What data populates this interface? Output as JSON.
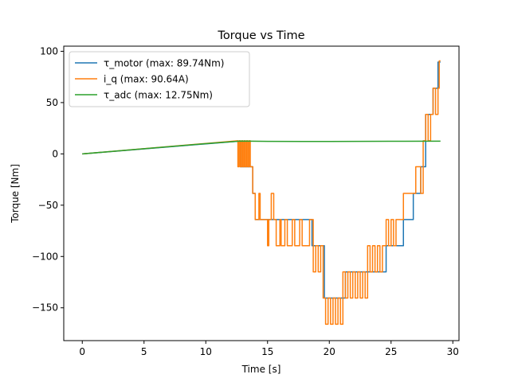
{
  "chart_data": {
    "type": "line",
    "title": "Torque vs Time",
    "xlabel": "Time [s]",
    "ylabel": "Torque [Nm]",
    "xlim": [
      -1.5,
      30.5
    ],
    "ylim": [
      -182,
      105
    ],
    "xticks": [
      0,
      5,
      10,
      15,
      20,
      25,
      30
    ],
    "yticks": [
      -150,
      -100,
      -50,
      0,
      50,
      100
    ],
    "grid": false,
    "legend_position": "top-left",
    "series": [
      {
        "name": "τ_motor (max: 89.74Nm)",
        "color": "#1f77b4",
        "x": [
          0,
          12.8,
          12.8,
          13.8,
          13.8,
          14.0,
          14.0,
          14.4,
          14.4,
          15.0,
          15.0,
          15.2,
          15.2,
          16.0,
          16.0,
          16.8,
          16.8,
          18.6,
          18.6,
          19.6,
          19.6,
          21.3,
          21.3,
          23.0,
          23.0,
          24.6,
          24.6,
          26.0,
          26.0,
          26.8,
          26.8,
          27.4,
          27.4,
          27.8,
          27.8,
          28.4,
          28.4,
          28.8,
          28.8,
          29.0
        ],
        "y": [
          0,
          12.5,
          -12.5,
          -12.5,
          -38.5,
          -38.5,
          -64,
          -64,
          -64,
          -64,
          -64,
          -64,
          -64,
          -64,
          -64,
          -64,
          -64,
          -64,
          -89.5,
          -89.5,
          -140.5,
          -140.5,
          -115,
          -115,
          -115,
          -115,
          -89.5,
          -89.5,
          -64,
          -64,
          -38.5,
          -38.5,
          -12.5,
          -12.5,
          38.5,
          38.5,
          64,
          64,
          89.5,
          89.5
        ]
      },
      {
        "name": "i_q (max: 90.64A)",
        "color": "#ff7f0e",
        "x": [
          0,
          12.6,
          12.6,
          12.7,
          12.7,
          12.8,
          12.8,
          12.9,
          12.9,
          13.0,
          13.0,
          13.1,
          13.1,
          13.2,
          13.2,
          13.3,
          13.3,
          13.4,
          13.4,
          13.5,
          13.5,
          13.6,
          13.6,
          13.7,
          13.7,
          13.8,
          13.8,
          13.9,
          13.9,
          14.0,
          14.0,
          14.3,
          14.3,
          14.4,
          14.4,
          14.5,
          14.5,
          14.6,
          14.6,
          15.0,
          15.0,
          15.1,
          15.1,
          15.3,
          15.3,
          15.5,
          15.5,
          15.7,
          15.7,
          16.0,
          16.0,
          16.1,
          16.1,
          16.4,
          16.4,
          16.6,
          16.6,
          17.0,
          17.0,
          17.2,
          17.2,
          17.6,
          17.6,
          17.8,
          17.8,
          18.4,
          18.4,
          18.7,
          18.7,
          18.9,
          18.9,
          19.1,
          19.1,
          19.3,
          19.3,
          19.5,
          19.5,
          19.7,
          19.7,
          19.9,
          19.9,
          20.1,
          20.1,
          20.3,
          20.3,
          20.5,
          20.5,
          20.7,
          20.7,
          20.9,
          20.9,
          21.1,
          21.1,
          21.3,
          21.3,
          21.5,
          21.5,
          21.7,
          21.7,
          21.9,
          21.9,
          22.1,
          22.1,
          22.3,
          22.3,
          22.5,
          22.5,
          22.7,
          22.7,
          22.9,
          22.9,
          23.1,
          23.1,
          23.3,
          23.3,
          23.5,
          23.5,
          23.7,
          23.7,
          23.9,
          23.9,
          24.1,
          24.1,
          24.3,
          24.3,
          24.6,
          24.6,
          24.8,
          24.8,
          25.0,
          25.0,
          25.2,
          25.2,
          25.4,
          25.4,
          25.6,
          25.6,
          26.0,
          26.0,
          26.8,
          26.8,
          27.0,
          27.0,
          27.4,
          27.4,
          27.6,
          27.6,
          27.8,
          27.8,
          28.0,
          28.0,
          28.2,
          28.2,
          28.4,
          28.4,
          28.6,
          28.6,
          28.8,
          28.8,
          28.9,
          28.9,
          29.0
        ],
        "y": [
          0,
          12.8,
          -12.5,
          -12.5,
          12.8,
          12.8,
          -12.5,
          -12.5,
          12.8,
          12.8,
          -12.5,
          -12.5,
          12.8,
          12.8,
          -12.5,
          -12.5,
          12.8,
          12.8,
          -12.5,
          -12.5,
          12.8,
          12.8,
          -12.5,
          -12.5,
          -12.5,
          -12.5,
          -38.5,
          -38.5,
          -38.5,
          -38.5,
          -64,
          -64,
          -38.5,
          -38.5,
          -64,
          -64,
          -64,
          -64,
          -64,
          -64,
          -89.5,
          -89.5,
          -64,
          -64,
          -38.5,
          -38.5,
          -64,
          -64,
          -89.5,
          -89.5,
          -64,
          -64,
          -89.5,
          -89.5,
          -64,
          -64,
          -89.5,
          -89.5,
          -64,
          -64,
          -89.5,
          -89.5,
          -64,
          -64,
          -89.5,
          -89.5,
          -64,
          -64,
          -115,
          -115,
          -89.5,
          -89.5,
          -115,
          -115,
          -89.5,
          -89.5,
          -140.5,
          -140.5,
          -166,
          -166,
          -140.5,
          -140.5,
          -166,
          -166,
          -140.5,
          -140.5,
          -166,
          -166,
          -140.5,
          -140.5,
          -166,
          -166,
          -115,
          -115,
          -140.5,
          -140.5,
          -115,
          -115,
          -140.5,
          -140.5,
          -115,
          -115,
          -140.5,
          -140.5,
          -115,
          -115,
          -140.5,
          -140.5,
          -115,
          -115,
          -140.5,
          -140.5,
          -89.5,
          -89.5,
          -115,
          -115,
          -89.5,
          -89.5,
          -115,
          -115,
          -89.5,
          -89.5,
          -115,
          -115,
          -89.5,
          -89.5,
          -64,
          -64,
          -89.5,
          -89.5,
          -64,
          -64,
          -89.5,
          -89.5,
          -64,
          -64,
          -64,
          -64,
          -38.5,
          -38.5,
          -38.5,
          -38.5,
          -12.5,
          -12.5,
          -38.5,
          -38.5,
          12.8,
          12.8,
          38.5,
          38.5,
          12.8,
          12.8,
          38.5,
          38.5,
          64,
          64,
          38.5,
          38.5,
          64,
          64,
          90.6,
          90.6
        ]
      },
      {
        "name": "τ_adc (max: 12.75Nm)",
        "color": "#2ca02c",
        "x": [
          0,
          5,
          10,
          12.8,
          15,
          20,
          25,
          29.0
        ],
        "y": [
          0,
          5,
          10,
          12.5,
          12.2,
          12.1,
          12.3,
          12.4
        ]
      }
    ]
  }
}
